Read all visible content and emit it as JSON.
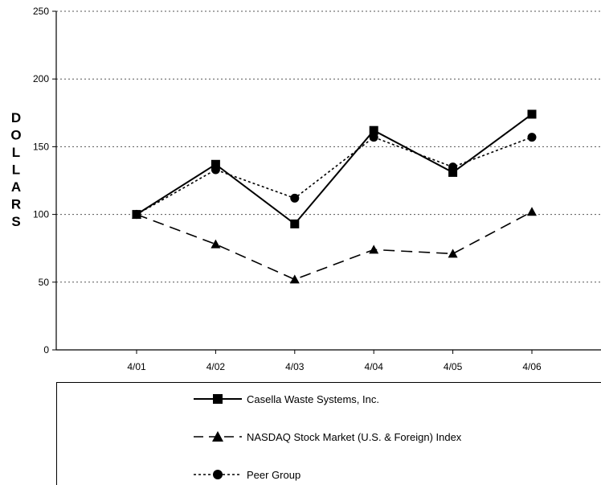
{
  "chart_data": {
    "type": "line",
    "title": "",
    "xlabel": "",
    "ylabel": "DOLLARS",
    "categories": [
      "4/01",
      "4/02",
      "4/03",
      "4/04",
      "4/05",
      "4/06"
    ],
    "yticks": [
      "0",
      "50",
      "100",
      "150",
      "200",
      "250"
    ],
    "ylim": [
      0,
      250
    ],
    "grid": "horizontal dotted",
    "legend_position": "bottom",
    "series": [
      {
        "name": "Casella Waste Systems, Inc.",
        "values": [
          100,
          137,
          93,
          162,
          131,
          174
        ],
        "line_style": "solid",
        "marker": "square"
      },
      {
        "name": "NASDAQ Stock Market (U.S. & Foreign) Index",
        "values": [
          100,
          78,
          52,
          74,
          71,
          102
        ],
        "line_style": "dashed",
        "marker": "triangle"
      },
      {
        "name": "Peer Group",
        "values": [
          100,
          133,
          112,
          157,
          135,
          157
        ],
        "line_style": "dotted",
        "marker": "circle"
      }
    ]
  }
}
